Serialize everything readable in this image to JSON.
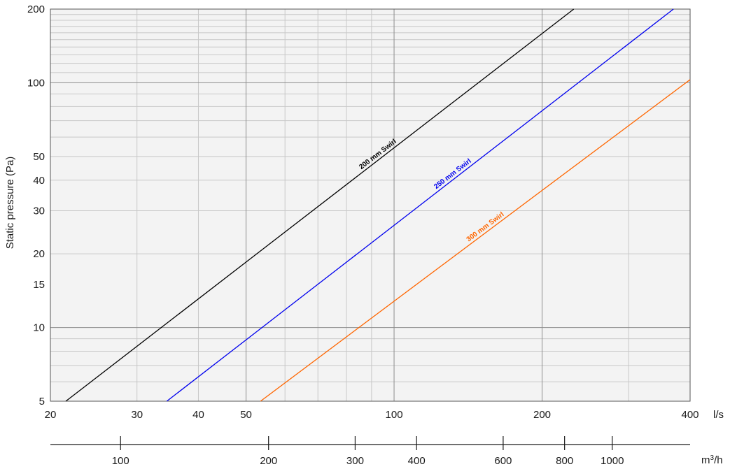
{
  "chart_data": {
    "type": "line",
    "scale": {
      "x": "log",
      "y": "log"
    },
    "grid": true,
    "ylabel": "Static pressure (Pa)",
    "x_unit": "l/s",
    "x2_unit": "m3/h",
    "xlim": [
      20,
      400
    ],
    "ylim": [
      5,
      200
    ],
    "x_ticks": [
      20,
      30,
      40,
      50,
      100,
      200,
      400
    ],
    "y_ticks": [
      5,
      10,
      15,
      20,
      30,
      40,
      50,
      100,
      200
    ],
    "x2_ticks": [
      100,
      200,
      300,
      400,
      600,
      800,
      1000
    ],
    "colors": {
      "background": "#f3f3f3",
      "grid_minor": "#c8c8c8",
      "grid_major": "#8c8c8c"
    },
    "series": [
      {
        "name": "200 mm Swirl",
        "color": "#000000",
        "x": [
          21.5,
          232
        ],
        "y": [
          5,
          200
        ]
      },
      {
        "name": "250 mm Swirl",
        "color": "#0000ee",
        "x": [
          34.5,
          370
        ],
        "y": [
          5,
          200
        ]
      },
      {
        "name": "300 mm Swirl",
        "color": "#ff6600",
        "x": [
          53.5,
          400
        ],
        "y": [
          5,
          103
        ]
      }
    ]
  }
}
